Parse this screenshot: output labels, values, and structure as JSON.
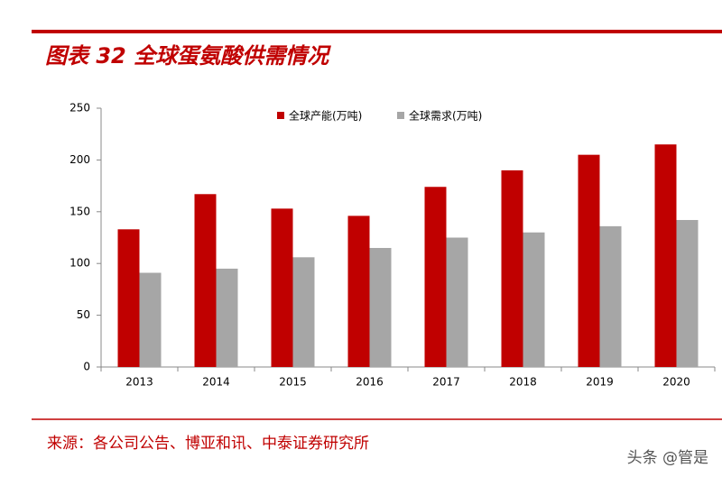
{
  "chart_data": {
    "type": "bar",
    "title": "图表 32 全球蛋氨酸供需情况",
    "source": "来源：各公司公告、博亚和讯、中泰证券研究所",
    "categories": [
      "2013",
      "2014",
      "2015",
      "2016",
      "2017",
      "2018",
      "2019",
      "2020"
    ],
    "series": [
      {
        "name": "全球产能(万吨)",
        "color": "#c00000",
        "values": [
          133,
          167,
          153,
          146,
          174,
          190,
          205,
          215
        ]
      },
      {
        "name": "全球需求(万吨)",
        "color": "#a6a6a6",
        "values": [
          91,
          95,
          106,
          115,
          125,
          130,
          136,
          142
        ]
      }
    ],
    "ylim": [
      0,
      250
    ],
    "yticks": [
      0,
      50,
      100,
      150,
      200,
      250
    ],
    "grid": false,
    "legend": "top"
  },
  "watermark": "头条 @管是"
}
